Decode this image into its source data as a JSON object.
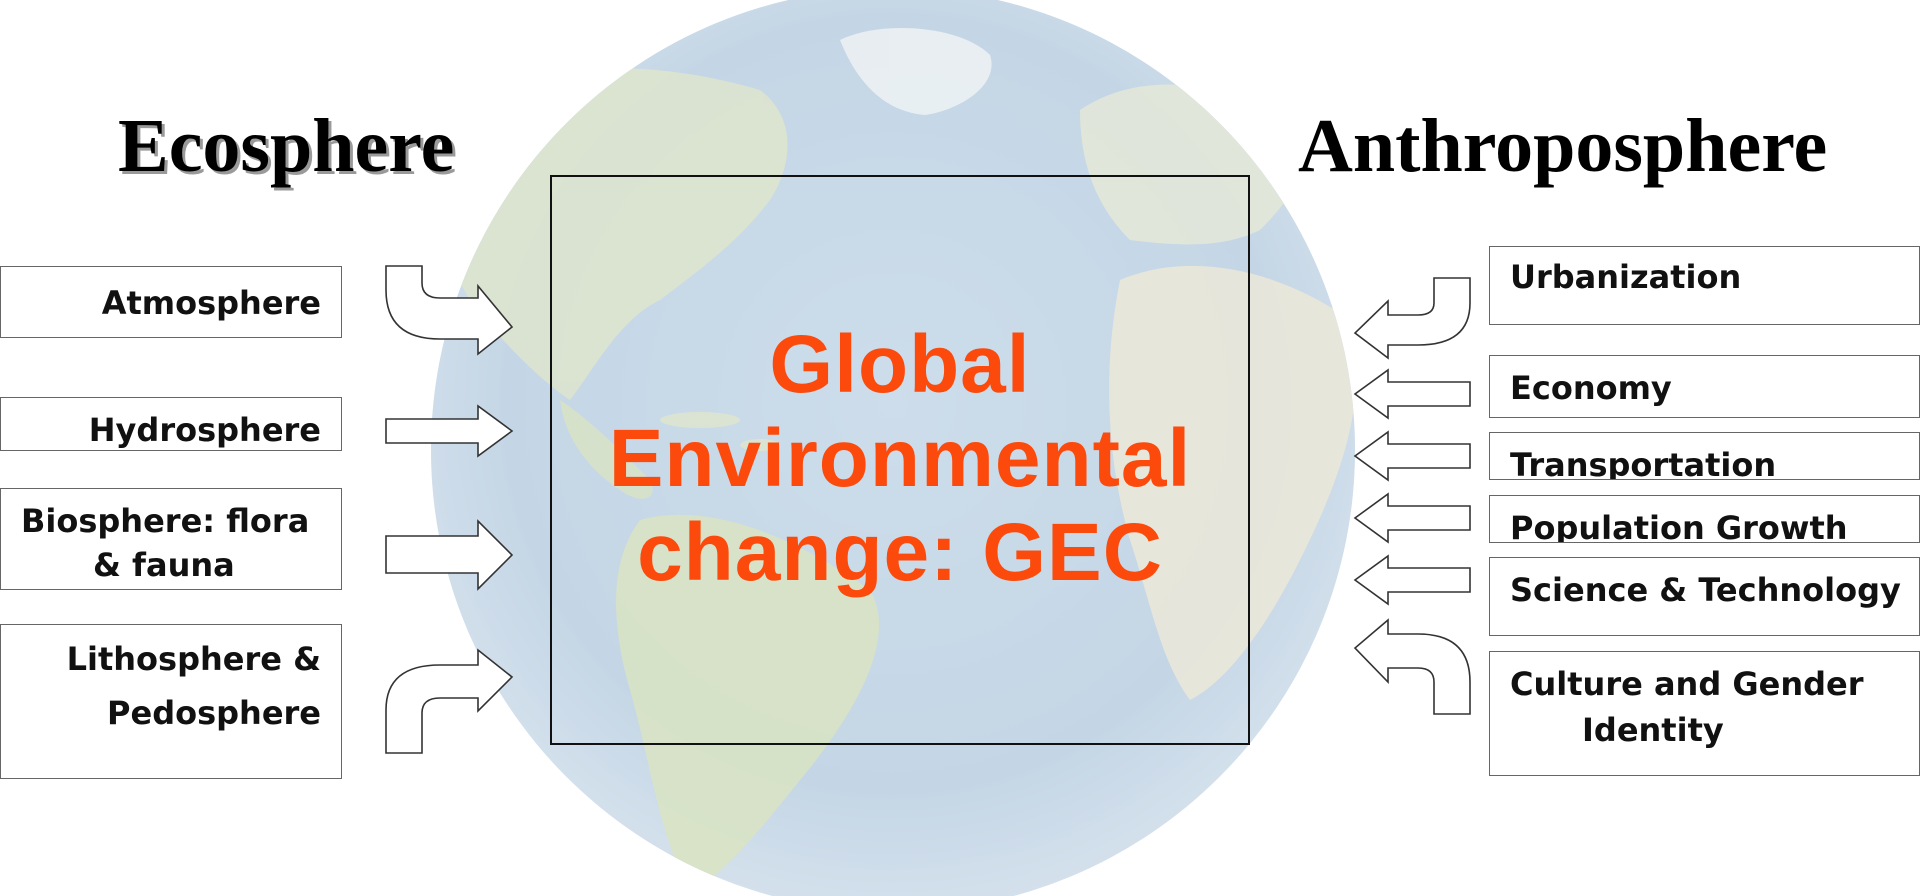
{
  "ecosphere": {
    "title": "Ecosphere",
    "items": [
      {
        "lines": [
          "Atmosphere"
        ]
      },
      {
        "lines": [
          "Hydrosphere"
        ]
      },
      {
        "lines": [
          "Biosphere: flora",
          "& fauna"
        ]
      },
      {
        "lines": [
          "Lithosphere &",
          "Pedosphere"
        ]
      }
    ]
  },
  "anthroposphere": {
    "title": "Anthroposphere",
    "items": [
      {
        "lines": [
          "Urbanization"
        ]
      },
      {
        "lines": [
          "Economy"
        ]
      },
      {
        "lines": [
          "Transportation"
        ]
      },
      {
        "lines": [
          "Population Growth"
        ]
      },
      {
        "lines": [
          "Science & Technology"
        ]
      },
      {
        "lines": [
          "Culture and Gender",
          "Identity"
        ]
      }
    ]
  },
  "center": {
    "lines": [
      "Global",
      "Environmental",
      "change: GEC"
    ],
    "color": "#fb4a0b"
  }
}
